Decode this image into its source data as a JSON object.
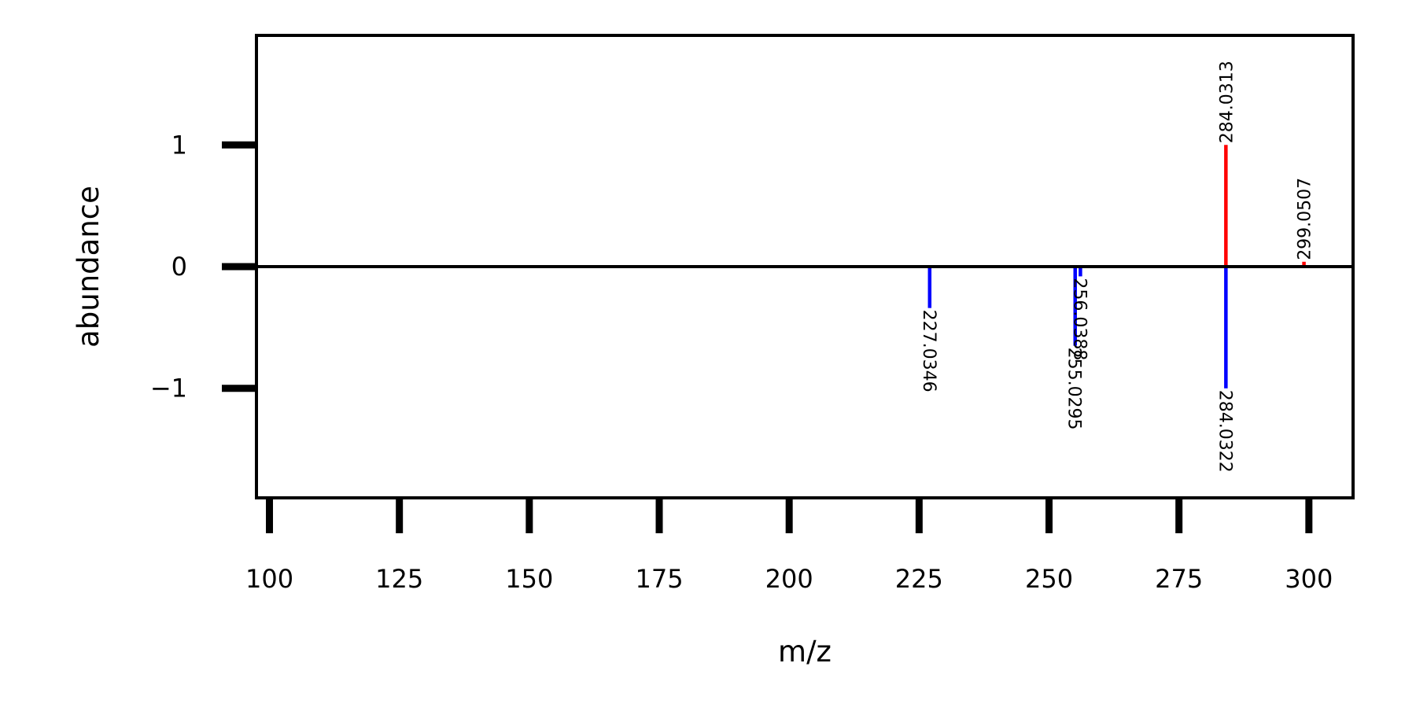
{
  "chart_data": {
    "type": "bar",
    "subtype": "mirror-spectrum",
    "title": "",
    "xlabel": "m/z",
    "ylabel": "abundance",
    "xlim": [
      97.5,
      308.5
    ],
    "ylim": [
      -1.9,
      1.9
    ],
    "xticks": [
      100,
      125,
      150,
      175,
      200,
      225,
      250,
      275,
      300
    ],
    "xtick_labels": [
      "100",
      "125",
      "150",
      "175",
      "200",
      "225",
      "250",
      "275",
      "300"
    ],
    "yticks": [
      1,
      0,
      -1
    ],
    "ytick_labels": [
      "1",
      "0",
      "−1"
    ],
    "grid": false,
    "legend": false,
    "series": [
      {
        "color": "#ff0000",
        "peaks": [
          {
            "mz": 284.0313,
            "abundance": 1.0,
            "label": "284.0313"
          },
          {
            "mz": 299.0507,
            "abundance": 0.04,
            "label": "299.0507"
          }
        ]
      },
      {
        "color": "#0000ff",
        "peaks": [
          {
            "mz": 227.0346,
            "abundance": -0.34,
            "label": "227.0346"
          },
          {
            "mz": 255.0295,
            "abundance": -0.65,
            "label": "255.0295"
          },
          {
            "mz": 256.0388,
            "abundance": -0.08,
            "label": "256.0388"
          },
          {
            "mz": 284.0322,
            "abundance": -1.0,
            "label": "284.0322"
          }
        ]
      }
    ]
  }
}
